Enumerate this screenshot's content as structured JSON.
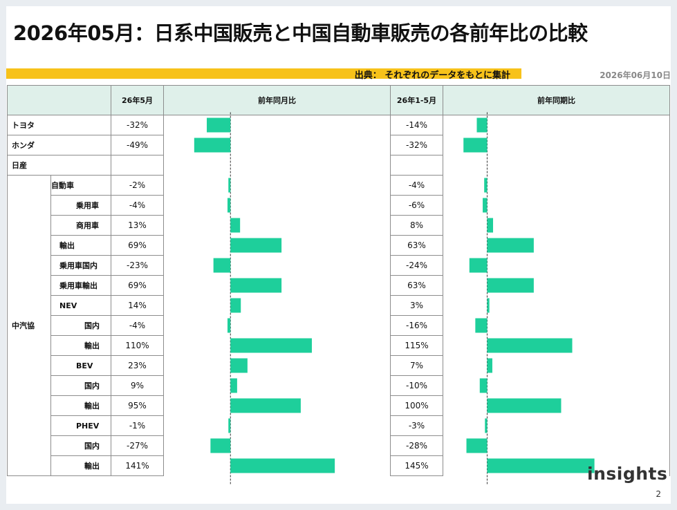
{
  "title": "2026年05月：日系中国販売と中国自動車販売の各前年比の比較",
  "source": "出典： それぞれのデータをもとに集計",
  "date": "2026年06月10日",
  "logo": "insights",
  "page_number": "2",
  "colors": {
    "bar": "#1ecf9b",
    "header_bg": "#dff0ea",
    "source_bar": "#f7c21a"
  },
  "headers": {
    "col_month": "26年5月",
    "col_month_yoy": "前年同月比",
    "col_ytd": "26年1-5月",
    "col_ytd_yoy": "前年同期比"
  },
  "group_label": "中汽協",
  "chart_data": {
    "type": "bar",
    "orientation": "horizontal",
    "categories": [
      "トヨタ",
      "ホンダ",
      "日産",
      "自動車",
      "乗用車",
      "商用車",
      "輸出",
      "乗用車国内",
      "乗用車輸出",
      "NEV",
      "国内",
      "輸出",
      "BEV",
      "国内",
      "輸出",
      "PHEV",
      "国内",
      "輸出"
    ],
    "series": [
      {
        "name": "前年同月比",
        "labels": [
          "-32%",
          "-49%",
          "",
          "-2%",
          "-4%",
          "13%",
          "69%",
          "-23%",
          "69%",
          "14%",
          "-4%",
          "110%",
          "23%",
          "9%",
          "95%",
          "-1%",
          "-27%",
          "141%"
        ],
        "values": [
          -32,
          -49,
          null,
          -2,
          -4,
          13,
          69,
          -23,
          69,
          14,
          -4,
          110,
          23,
          9,
          95,
          -1,
          -27,
          141
        ]
      },
      {
        "name": "前年同期比",
        "labels": [
          "-14%",
          "-32%",
          "",
          "-4%",
          "-6%",
          "8%",
          "63%",
          "-24%",
          "63%",
          "3%",
          "-16%",
          "115%",
          "7%",
          "-10%",
          "100%",
          "-3%",
          "-28%",
          "145%"
        ],
        "values": [
          -14,
          -32,
          null,
          -4,
          -6,
          8,
          63,
          -24,
          63,
          3,
          -16,
          115,
          7,
          -10,
          100,
          -3,
          -28,
          145
        ]
      }
    ]
  },
  "rows": [
    {
      "label": "トヨタ",
      "indent": "top"
    },
    {
      "label": "ホンダ",
      "indent": "top"
    },
    {
      "label": "日産",
      "indent": "top"
    },
    {
      "label": "自動車",
      "indent": "l1"
    },
    {
      "label": "乗用車",
      "indent": "l3"
    },
    {
      "label": "商用車",
      "indent": "l3"
    },
    {
      "label": "輸出",
      "indent": "l2"
    },
    {
      "label": "乗用車国内",
      "indent": "l2"
    },
    {
      "label": "乗用車輸出",
      "indent": "l2"
    },
    {
      "label": "NEV",
      "indent": "l2"
    },
    {
      "label": "国内",
      "indent": "l4"
    },
    {
      "label": "輸出",
      "indent": "l4"
    },
    {
      "label": "BEV",
      "indent": "l3"
    },
    {
      "label": "国内",
      "indent": "l4"
    },
    {
      "label": "輸出",
      "indent": "l4"
    },
    {
      "label": "PHEV",
      "indent": "l3"
    },
    {
      "label": "国内",
      "indent": "l4"
    },
    {
      "label": "輸出",
      "indent": "l4"
    }
  ]
}
